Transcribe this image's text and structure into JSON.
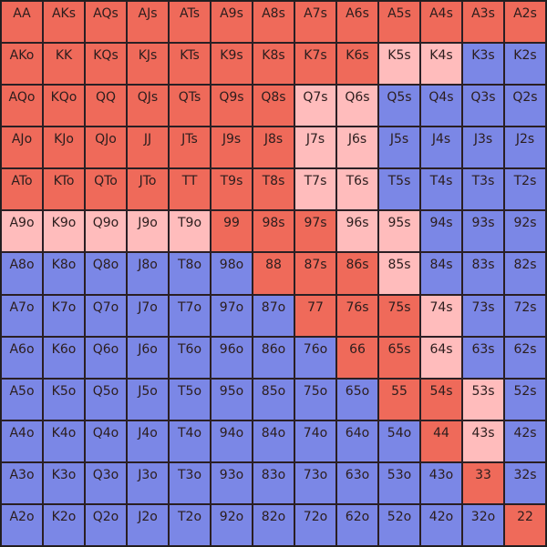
{
  "colors": {
    "r": "#ef6a5a",
    "p": "#ffbcbc",
    "b": "#7b87e6"
  },
  "grid": {
    "rows": [
      [
        {
          "label": "AA",
          "c": "r"
        },
        {
          "label": "AKs",
          "c": "r"
        },
        {
          "label": "AQs",
          "c": "r"
        },
        {
          "label": "AJs",
          "c": "r"
        },
        {
          "label": "ATs",
          "c": "r"
        },
        {
          "label": "A9s",
          "c": "r"
        },
        {
          "label": "A8s",
          "c": "r"
        },
        {
          "label": "A7s",
          "c": "r"
        },
        {
          "label": "A6s",
          "c": "r"
        },
        {
          "label": "A5s",
          "c": "r"
        },
        {
          "label": "A4s",
          "c": "r"
        },
        {
          "label": "A3s",
          "c": "r"
        },
        {
          "label": "A2s",
          "c": "r"
        }
      ],
      [
        {
          "label": "AKo",
          "c": "r"
        },
        {
          "label": "KK",
          "c": "r"
        },
        {
          "label": "KQs",
          "c": "r"
        },
        {
          "label": "KJs",
          "c": "r"
        },
        {
          "label": "KTs",
          "c": "r"
        },
        {
          "label": "K9s",
          "c": "r"
        },
        {
          "label": "K8s",
          "c": "r"
        },
        {
          "label": "K7s",
          "c": "r"
        },
        {
          "label": "K6s",
          "c": "r"
        },
        {
          "label": "K5s",
          "c": "p"
        },
        {
          "label": "K4s",
          "c": "p"
        },
        {
          "label": "K3s",
          "c": "b"
        },
        {
          "label": "K2s",
          "c": "b"
        }
      ],
      [
        {
          "label": "AQo",
          "c": "r"
        },
        {
          "label": "KQo",
          "c": "r"
        },
        {
          "label": "QQ",
          "c": "r"
        },
        {
          "label": "QJs",
          "c": "r"
        },
        {
          "label": "QTs",
          "c": "r"
        },
        {
          "label": "Q9s",
          "c": "r"
        },
        {
          "label": "Q8s",
          "c": "r"
        },
        {
          "label": "Q7s",
          "c": "p"
        },
        {
          "label": "Q6s",
          "c": "p"
        },
        {
          "label": "Q5s",
          "c": "b"
        },
        {
          "label": "Q4s",
          "c": "b"
        },
        {
          "label": "Q3s",
          "c": "b"
        },
        {
          "label": "Q2s",
          "c": "b"
        }
      ],
      [
        {
          "label": "AJo",
          "c": "r"
        },
        {
          "label": "KJo",
          "c": "r"
        },
        {
          "label": "QJo",
          "c": "r"
        },
        {
          "label": "JJ",
          "c": "r"
        },
        {
          "label": "JTs",
          "c": "r"
        },
        {
          "label": "J9s",
          "c": "r"
        },
        {
          "label": "J8s",
          "c": "r"
        },
        {
          "label": "J7s",
          "c": "p"
        },
        {
          "label": "J6s",
          "c": "p"
        },
        {
          "label": "J5s",
          "c": "b"
        },
        {
          "label": "J4s",
          "c": "b"
        },
        {
          "label": "J3s",
          "c": "b"
        },
        {
          "label": "J2s",
          "c": "b"
        }
      ],
      [
        {
          "label": "ATo",
          "c": "r"
        },
        {
          "label": "KTo",
          "c": "r"
        },
        {
          "label": "QTo",
          "c": "r"
        },
        {
          "label": "JTo",
          "c": "r"
        },
        {
          "label": "TT",
          "c": "r"
        },
        {
          "label": "T9s",
          "c": "r"
        },
        {
          "label": "T8s",
          "c": "r"
        },
        {
          "label": "T7s",
          "c": "p"
        },
        {
          "label": "T6s",
          "c": "p"
        },
        {
          "label": "T5s",
          "c": "b"
        },
        {
          "label": "T4s",
          "c": "b"
        },
        {
          "label": "T3s",
          "c": "b"
        },
        {
          "label": "T2s",
          "c": "b"
        }
      ],
      [
        {
          "label": "A9o",
          "c": "p"
        },
        {
          "label": "K9o",
          "c": "p"
        },
        {
          "label": "Q9o",
          "c": "p"
        },
        {
          "label": "J9o",
          "c": "p"
        },
        {
          "label": "T9o",
          "c": "p"
        },
        {
          "label": "99",
          "c": "r"
        },
        {
          "label": "98s",
          "c": "r"
        },
        {
          "label": "97s",
          "c": "r"
        },
        {
          "label": "96s",
          "c": "p"
        },
        {
          "label": "95s",
          "c": "p"
        },
        {
          "label": "94s",
          "c": "b"
        },
        {
          "label": "93s",
          "c": "b"
        },
        {
          "label": "92s",
          "c": "b"
        }
      ],
      [
        {
          "label": "A8o",
          "c": "b"
        },
        {
          "label": "K8o",
          "c": "b"
        },
        {
          "label": "Q8o",
          "c": "b"
        },
        {
          "label": "J8o",
          "c": "b"
        },
        {
          "label": "T8o",
          "c": "b"
        },
        {
          "label": "98o",
          "c": "b"
        },
        {
          "label": "88",
          "c": "r"
        },
        {
          "label": "87s",
          "c": "r"
        },
        {
          "label": "86s",
          "c": "r"
        },
        {
          "label": "85s",
          "c": "p"
        },
        {
          "label": "84s",
          "c": "b"
        },
        {
          "label": "83s",
          "c": "b"
        },
        {
          "label": "82s",
          "c": "b"
        }
      ],
      [
        {
          "label": "A7o",
          "c": "b"
        },
        {
          "label": "K7o",
          "c": "b"
        },
        {
          "label": "Q7o",
          "c": "b"
        },
        {
          "label": "J7o",
          "c": "b"
        },
        {
          "label": "T7o",
          "c": "b"
        },
        {
          "label": "97o",
          "c": "b"
        },
        {
          "label": "87o",
          "c": "b"
        },
        {
          "label": "77",
          "c": "r"
        },
        {
          "label": "76s",
          "c": "r"
        },
        {
          "label": "75s",
          "c": "r"
        },
        {
          "label": "74s",
          "c": "p"
        },
        {
          "label": "73s",
          "c": "b"
        },
        {
          "label": "72s",
          "c": "b"
        }
      ],
      [
        {
          "label": "A6o",
          "c": "b"
        },
        {
          "label": "K6o",
          "c": "b"
        },
        {
          "label": "Q6o",
          "c": "b"
        },
        {
          "label": "J6o",
          "c": "b"
        },
        {
          "label": "T6o",
          "c": "b"
        },
        {
          "label": "96o",
          "c": "b"
        },
        {
          "label": "86o",
          "c": "b"
        },
        {
          "label": "76o",
          "c": "b"
        },
        {
          "label": "66",
          "c": "r"
        },
        {
          "label": "65s",
          "c": "r"
        },
        {
          "label": "64s",
          "c": "p"
        },
        {
          "label": "63s",
          "c": "b"
        },
        {
          "label": "62s",
          "c": "b"
        }
      ],
      [
        {
          "label": "A5o",
          "c": "b"
        },
        {
          "label": "K5o",
          "c": "b"
        },
        {
          "label": "Q5o",
          "c": "b"
        },
        {
          "label": "J5o",
          "c": "b"
        },
        {
          "label": "T5o",
          "c": "b"
        },
        {
          "label": "95o",
          "c": "b"
        },
        {
          "label": "85o",
          "c": "b"
        },
        {
          "label": "75o",
          "c": "b"
        },
        {
          "label": "65o",
          "c": "b"
        },
        {
          "label": "55",
          "c": "r"
        },
        {
          "label": "54s",
          "c": "r"
        },
        {
          "label": "53s",
          "c": "p"
        },
        {
          "label": "52s",
          "c": "b"
        }
      ],
      [
        {
          "label": "A4o",
          "c": "b"
        },
        {
          "label": "K4o",
          "c": "b"
        },
        {
          "label": "Q4o",
          "c": "b"
        },
        {
          "label": "J4o",
          "c": "b"
        },
        {
          "label": "T4o",
          "c": "b"
        },
        {
          "label": "94o",
          "c": "b"
        },
        {
          "label": "84o",
          "c": "b"
        },
        {
          "label": "74o",
          "c": "b"
        },
        {
          "label": "64o",
          "c": "b"
        },
        {
          "label": "54o",
          "c": "b"
        },
        {
          "label": "44",
          "c": "r"
        },
        {
          "label": "43s",
          "c": "p"
        },
        {
          "label": "42s",
          "c": "b"
        }
      ],
      [
        {
          "label": "A3o",
          "c": "b"
        },
        {
          "label": "K3o",
          "c": "b"
        },
        {
          "label": "Q3o",
          "c": "b"
        },
        {
          "label": "J3o",
          "c": "b"
        },
        {
          "label": "T3o",
          "c": "b"
        },
        {
          "label": "93o",
          "c": "b"
        },
        {
          "label": "83o",
          "c": "b"
        },
        {
          "label": "73o",
          "c": "b"
        },
        {
          "label": "63o",
          "c": "b"
        },
        {
          "label": "53o",
          "c": "b"
        },
        {
          "label": "43o",
          "c": "b"
        },
        {
          "label": "33",
          "c": "r"
        },
        {
          "label": "32s",
          "c": "b"
        }
      ],
      [
        {
          "label": "A2o",
          "c": "b"
        },
        {
          "label": "K2o",
          "c": "b"
        },
        {
          "label": "Q2o",
          "c": "b"
        },
        {
          "label": "J2o",
          "c": "b"
        },
        {
          "label": "T2o",
          "c": "b"
        },
        {
          "label": "92o",
          "c": "b"
        },
        {
          "label": "82o",
          "c": "b"
        },
        {
          "label": "72o",
          "c": "b"
        },
        {
          "label": "62o",
          "c": "b"
        },
        {
          "label": "52o",
          "c": "b"
        },
        {
          "label": "42o",
          "c": "b"
        },
        {
          "label": "32o",
          "c": "b"
        },
        {
          "label": "22",
          "c": "r"
        }
      ]
    ]
  }
}
